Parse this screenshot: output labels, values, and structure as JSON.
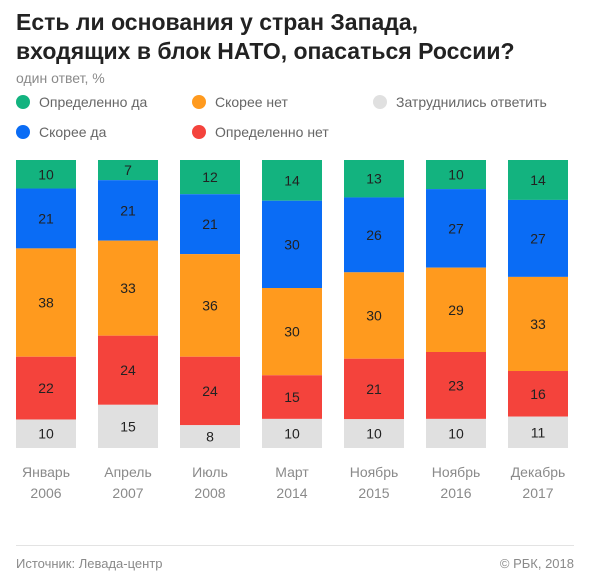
{
  "header": {
    "title_line1": "Есть ли основания у стран Запада,",
    "title_line2": "входящих в блок НАТО, опасаться России?",
    "subtitle": "один ответ, %"
  },
  "legend": [
    {
      "label": "Определенно да",
      "color": "#13b37f"
    },
    {
      "label": "Скорее нет",
      "color": "#ff9a1e"
    },
    {
      "label": "Затруднились ответить",
      "color": "#e0e0e0"
    },
    {
      "label": "Скорее да",
      "color": "#0a6cf5"
    },
    {
      "label": "Определенно нет",
      "color": "#f4433c"
    }
  ],
  "chart_data": {
    "type": "bar",
    "stacked": true,
    "categories": [
      [
        "Январь",
        "2006"
      ],
      [
        "Апрель",
        "2007"
      ],
      [
        "Июль",
        "2008"
      ],
      [
        "Март",
        "2014"
      ],
      [
        "Ноябрь",
        "2015"
      ],
      [
        "Ноябрь",
        "2016"
      ],
      [
        "Декабрь",
        "2017"
      ]
    ],
    "series": [
      {
        "name": "Определенно да",
        "color": "#13b37f",
        "values": [
          10,
          7,
          12,
          14,
          13,
          10,
          14
        ]
      },
      {
        "name": "Скорее да",
        "color": "#0a6cf5",
        "values": [
          21,
          21,
          21,
          30,
          26,
          27,
          27
        ]
      },
      {
        "name": "Скорее нет",
        "color": "#ff9a1e",
        "values": [
          38,
          33,
          36,
          30,
          30,
          29,
          33
        ]
      },
      {
        "name": "Определенно нет",
        "color": "#f4433c",
        "values": [
          22,
          24,
          24,
          15,
          21,
          23,
          16
        ]
      },
      {
        "name": "Затруднились ответить",
        "color": "#e0e0e0",
        "values": [
          10,
          15,
          8,
          10,
          10,
          10,
          11
        ]
      }
    ]
  },
  "footer": {
    "source": "Источник: Левада-центр",
    "copyright": "© РБК, 2018"
  }
}
